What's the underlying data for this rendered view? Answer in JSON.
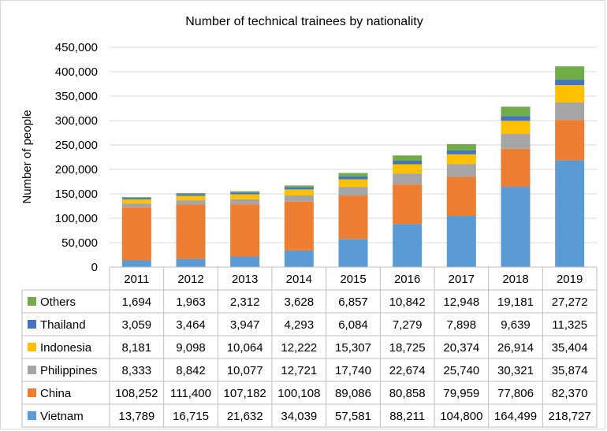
{
  "chart_data": {
    "type": "bar",
    "stacked": true,
    "title": "Number of technical trainees by nationality",
    "ylabel": "Number of people",
    "xlabel": "",
    "ylim": [
      0,
      450000
    ],
    "yticks": [
      "0",
      "50,000",
      "100,000",
      "150,000",
      "200,000",
      "250,000",
      "300,000",
      "350,000",
      "400,000",
      "450,000"
    ],
    "ytick_values": [
      0,
      50000,
      100000,
      150000,
      200000,
      250000,
      300000,
      350000,
      400000,
      450000
    ],
    "grid": true,
    "legend": "data-table-left",
    "categories": [
      "2011",
      "2012",
      "2013",
      "2014",
      "2015",
      "2016",
      "2017",
      "2018",
      "2019"
    ],
    "series": [
      {
        "name": "Vietnam",
        "color": "#5b9bd5",
        "values": [
          13789,
          16715,
          21632,
          34039,
          57581,
          88211,
          104800,
          164499,
          218727
        ],
        "labels": [
          "13,789",
          "16,715",
          "21,632",
          "34,039",
          "57,581",
          "88,211",
          "104,800",
          "164,499",
          "218,727"
        ]
      },
      {
        "name": "China",
        "color": "#ed7d31",
        "values": [
          108252,
          111400,
          107182,
          100108,
          89086,
          80858,
          79959,
          77806,
          82370
        ],
        "labels": [
          "108,252",
          "111,400",
          "107,182",
          "100,108",
          "89,086",
          "80,858",
          "79,959",
          "77,806",
          "82,370"
        ]
      },
      {
        "name": "Philippines",
        "color": "#a5a5a5",
        "values": [
          8333,
          8842,
          10077,
          12721,
          17740,
          22674,
          25740,
          30321,
          35874
        ],
        "labels": [
          "8,333",
          "8,842",
          "10,077",
          "12,721",
          "17,740",
          "22,674",
          "25,740",
          "30,321",
          "35,874"
        ]
      },
      {
        "name": "Indonesia",
        "color": "#ffc000",
        "values": [
          8181,
          9098,
          10064,
          12222,
          15307,
          18725,
          20374,
          26914,
          35404
        ],
        "labels": [
          "8,181",
          "9,098",
          "10,064",
          "12,222",
          "15,307",
          "18,725",
          "20,374",
          "26,914",
          "35,404"
        ]
      },
      {
        "name": "Thailand",
        "color": "#4472c4",
        "values": [
          3059,
          3464,
          3947,
          4293,
          6084,
          7279,
          7898,
          9639,
          11325
        ],
        "labels": [
          "3,059",
          "3,464",
          "3,947",
          "4,293",
          "6,084",
          "7,279",
          "7,898",
          "9,639",
          "11,325"
        ]
      },
      {
        "name": "Others",
        "color": "#70ad47",
        "values": [
          1694,
          1963,
          2312,
          3628,
          6857,
          10842,
          12948,
          19181,
          27272
        ],
        "labels": [
          "1,694",
          "1,963",
          "2,312",
          "3,628",
          "6,857",
          "10,842",
          "12,948",
          "19,181",
          "27,272"
        ]
      }
    ]
  }
}
